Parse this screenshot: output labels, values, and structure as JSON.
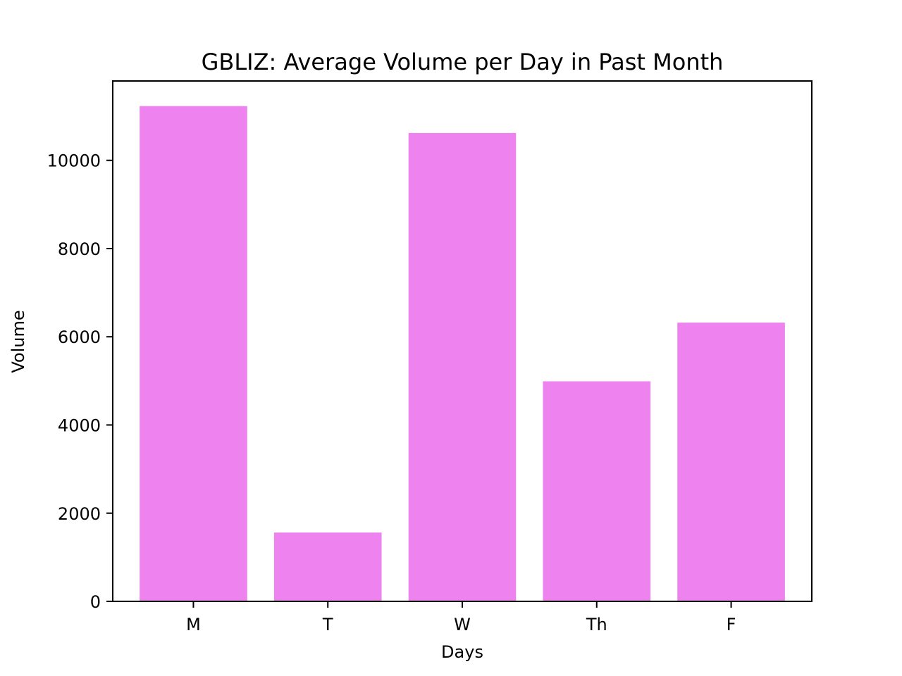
{
  "chart_data": {
    "type": "bar",
    "title": "GBLIZ: Average Volume per Day in Past Month",
    "xlabel": "Days",
    "ylabel": "Volume",
    "categories": [
      "M",
      "T",
      "W",
      "Th",
      "F"
    ],
    "values": [
      11230,
      1560,
      10620,
      4990,
      6320
    ],
    "ylim": [
      0,
      11800
    ],
    "yticks": [
      0,
      2000,
      4000,
      6000,
      8000,
      10000
    ],
    "ytick_labels": [
      "0",
      "2000",
      "4000",
      "6000",
      "8000",
      "10000"
    ],
    "grid": false,
    "legend": "none",
    "bar_color": "#ee82ee",
    "axis_color": "#000000"
  }
}
